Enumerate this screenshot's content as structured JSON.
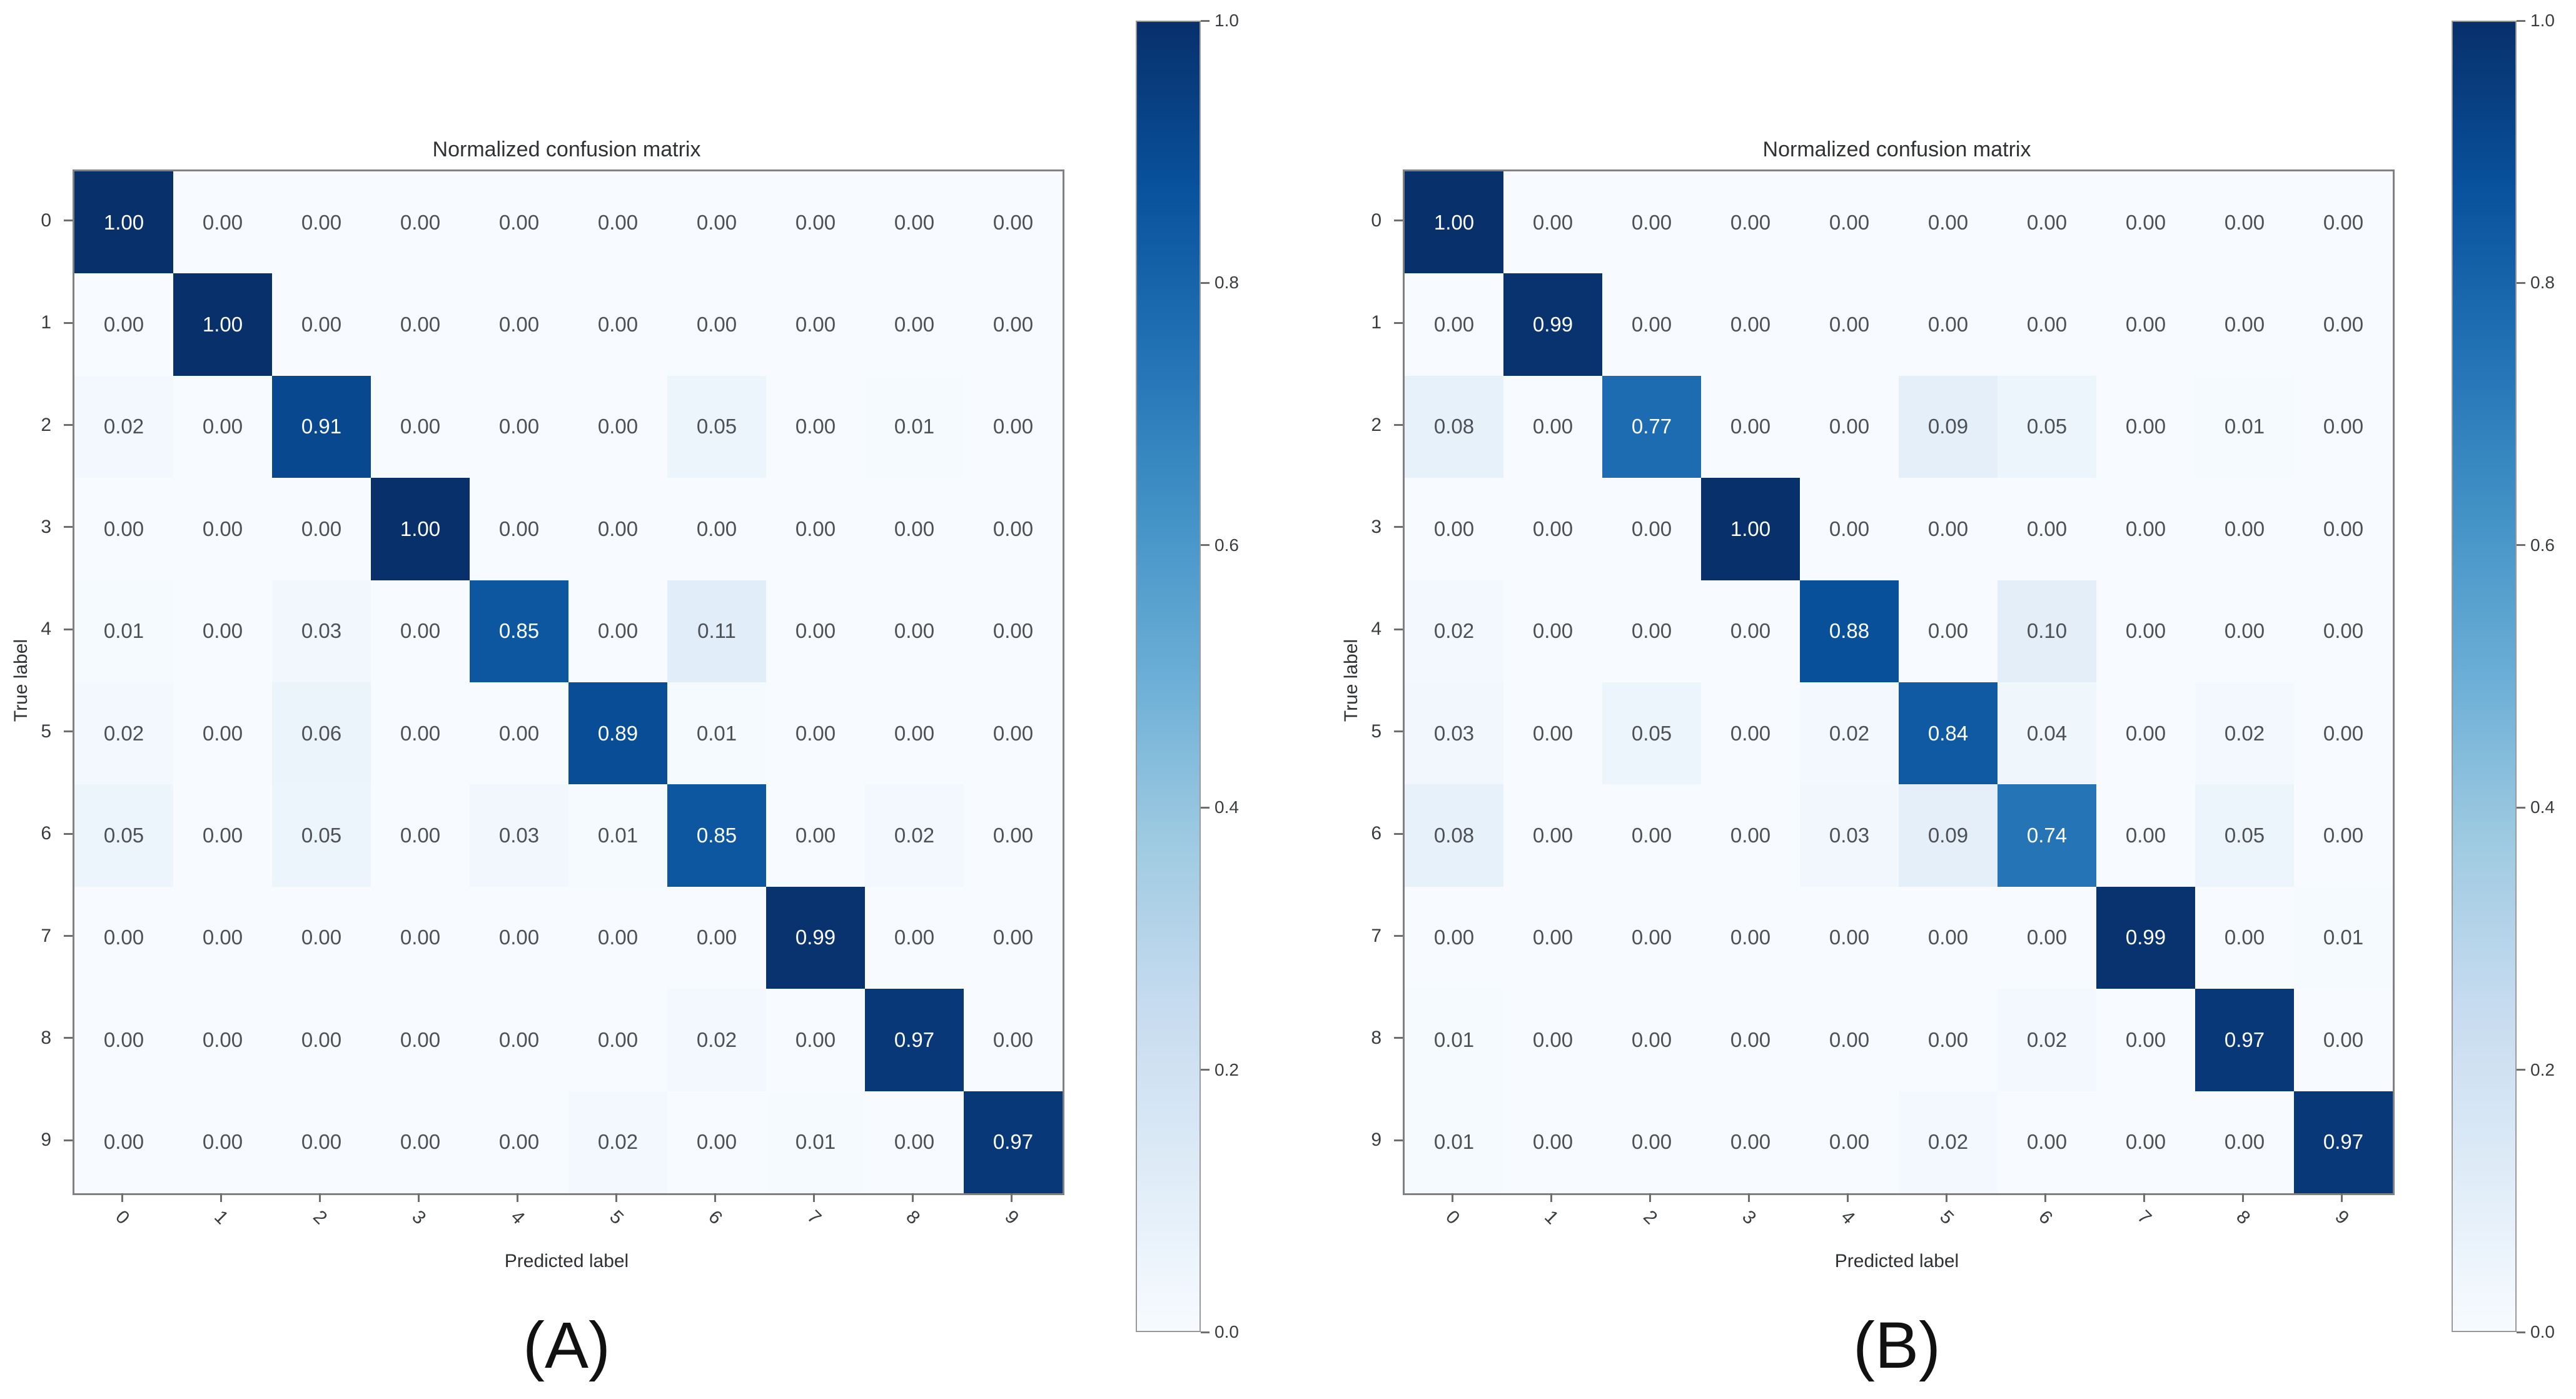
{
  "chart_data": [
    {
      "type": "heatmap",
      "caption": "(A)",
      "title": "Normalized confusion matrix",
      "xlabel": "Predicted label",
      "ylabel": "True label",
      "x_tick_labels": [
        "0",
        "1",
        "2",
        "3",
        "4",
        "5",
        "6",
        "7",
        "8",
        "9"
      ],
      "y_tick_labels": [
        "0",
        "1",
        "2",
        "3",
        "4",
        "5",
        "6",
        "7",
        "8",
        "9"
      ],
      "colorbar_tick_labels": [
        "1.0",
        "0.8",
        "0.6",
        "0.4",
        "0.2",
        "0.0"
      ],
      "vmin": 0.0,
      "vmax": 1.0,
      "colormap": "Blues",
      "values": [
        [
          1.0,
          0.0,
          0.0,
          0.0,
          0.0,
          0.0,
          0.0,
          0.0,
          0.0,
          0.0
        ],
        [
          0.0,
          1.0,
          0.0,
          0.0,
          0.0,
          0.0,
          0.0,
          0.0,
          0.0,
          0.0
        ],
        [
          0.02,
          0.0,
          0.91,
          0.0,
          0.0,
          0.0,
          0.05,
          0.0,
          0.01,
          0.0
        ],
        [
          0.0,
          0.0,
          0.0,
          1.0,
          0.0,
          0.0,
          0.0,
          0.0,
          0.0,
          0.0
        ],
        [
          0.01,
          0.0,
          0.03,
          0.0,
          0.85,
          0.0,
          0.11,
          0.0,
          0.0,
          0.0
        ],
        [
          0.02,
          0.0,
          0.06,
          0.0,
          0.0,
          0.89,
          0.01,
          0.0,
          0.0,
          0.0
        ],
        [
          0.05,
          0.0,
          0.05,
          0.0,
          0.03,
          0.01,
          0.85,
          0.0,
          0.02,
          0.0
        ],
        [
          0.0,
          0.0,
          0.0,
          0.0,
          0.0,
          0.0,
          0.0,
          0.99,
          0.0,
          0.0
        ],
        [
          0.0,
          0.0,
          0.0,
          0.0,
          0.0,
          0.0,
          0.02,
          0.0,
          0.97,
          0.0
        ],
        [
          0.0,
          0.0,
          0.0,
          0.0,
          0.0,
          0.02,
          0.0,
          0.01,
          0.0,
          0.97
        ]
      ]
    },
    {
      "type": "heatmap",
      "caption": "(B)",
      "title": "Normalized confusion matrix",
      "xlabel": "Predicted label",
      "ylabel": "True label",
      "x_tick_labels": [
        "0",
        "1",
        "2",
        "3",
        "4",
        "5",
        "6",
        "7",
        "8",
        "9"
      ],
      "y_tick_labels": [
        "0",
        "1",
        "2",
        "3",
        "4",
        "5",
        "6",
        "7",
        "8",
        "9"
      ],
      "colorbar_tick_labels": [
        "1.0",
        "0.8",
        "0.6",
        "0.4",
        "0.2",
        "0.0"
      ],
      "vmin": 0.0,
      "vmax": 1.0,
      "colormap": "Blues",
      "values": [
        [
          1.0,
          0.0,
          0.0,
          0.0,
          0.0,
          0.0,
          0.0,
          0.0,
          0.0,
          0.0
        ],
        [
          0.0,
          0.99,
          0.0,
          0.0,
          0.0,
          0.0,
          0.0,
          0.0,
          0.0,
          0.0
        ],
        [
          0.08,
          0.0,
          0.77,
          0.0,
          0.0,
          0.09,
          0.05,
          0.0,
          0.01,
          0.0
        ],
        [
          0.0,
          0.0,
          0.0,
          1.0,
          0.0,
          0.0,
          0.0,
          0.0,
          0.0,
          0.0
        ],
        [
          0.02,
          0.0,
          0.0,
          0.0,
          0.88,
          0.0,
          0.1,
          0.0,
          0.0,
          0.0
        ],
        [
          0.03,
          0.0,
          0.05,
          0.0,
          0.02,
          0.84,
          0.04,
          0.0,
          0.02,
          0.0
        ],
        [
          0.08,
          0.0,
          0.0,
          0.0,
          0.03,
          0.09,
          0.74,
          0.0,
          0.05,
          0.0
        ],
        [
          0.0,
          0.0,
          0.0,
          0.0,
          0.0,
          0.0,
          0.0,
          0.99,
          0.0,
          0.01
        ],
        [
          0.01,
          0.0,
          0.0,
          0.0,
          0.0,
          0.0,
          0.02,
          0.0,
          0.97,
          0.0
        ],
        [
          0.01,
          0.0,
          0.0,
          0.0,
          0.0,
          0.02,
          0.0,
          0.0,
          0.0,
          0.97
        ]
      ]
    }
  ],
  "colors": {
    "cmap_anchors": [
      "#f7fbff",
      "#deebf7",
      "#c6dbef",
      "#9ecae1",
      "#6baed6",
      "#4292c6",
      "#2171b5",
      "#08519c",
      "#08306b"
    ],
    "cell_text_light": "#ffffff",
    "cell_text_dark": "#4d5156",
    "tick_label": "#3a3d40",
    "axis_label": "#2f3235",
    "caption": "#111111",
    "spine": "#808080",
    "background": "#ffffff"
  }
}
